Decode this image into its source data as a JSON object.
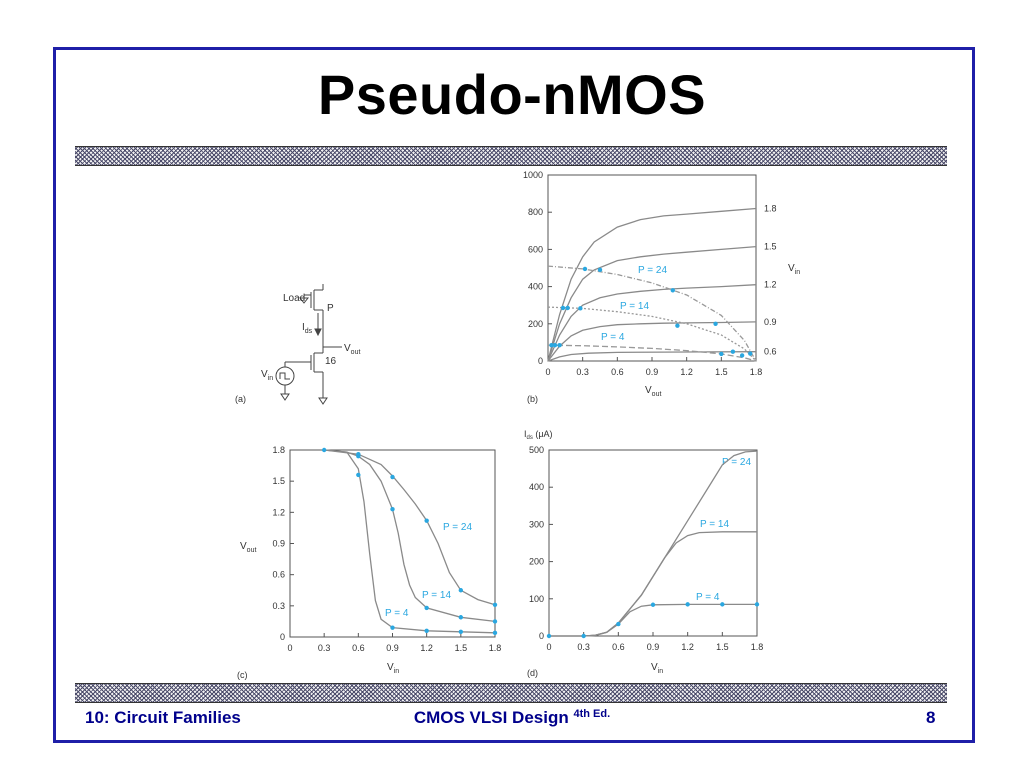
{
  "slide": {
    "title": "Pseudo-nMOS",
    "footer": {
      "left": "10: Circuit Families",
      "center": "CMOS VLSI Design",
      "center_sup": "4th Ed.",
      "page": "8"
    }
  },
  "figures": {
    "a": {
      "panel": "(a)",
      "load": "Load",
      "pmos": "P",
      "ids": "I",
      "ids_sub": "ds",
      "vout": "V",
      "vout_sub": "out",
      "nmos": "16",
      "vin": "V",
      "vin_sub": "in"
    },
    "b": {
      "panel": "(b)",
      "xlabel": "V",
      "xlabel_sub": "out",
      "vin_label": "V",
      "vin_sub": "in",
      "p_labels": [
        "P = 24",
        "P = 14",
        "P = 4"
      ]
    },
    "c": {
      "panel": "(c)",
      "ylabel": "V",
      "ylabel_sub": "out",
      "xlabel": "V",
      "xlabel_sub": "in",
      "p_labels": [
        "P = 24",
        "P = 14",
        "P = 4"
      ]
    },
    "d": {
      "panel": "(d)",
      "ylabel": "I",
      "ylabel_sub": "ds",
      "ylabel_unit": " (μA)",
      "xlabel": "V",
      "xlabel_sub": "in",
      "p_labels": [
        "P = 24",
        "P = 14",
        "P = 4"
      ]
    }
  },
  "chart_data": [
    {
      "type": "line",
      "panel": "(b)",
      "xlabel": "Vout",
      "xlim": [
        0,
        1.8
      ],
      "ylim": [
        0,
        1000
      ],
      "x_ticks": [
        0,
        0.3,
        0.6,
        0.9,
        1.2,
        1.5,
        1.8
      ],
      "y_ticks": [
        0,
        200,
        400,
        600,
        800,
        1000
      ],
      "x_tick_labels": [
        "0",
        "0.3",
        "0.6",
        "0.9",
        "1.2",
        "1.5",
        "1.8"
      ],
      "y_tick_labels": [
        "0",
        "200",
        "400",
        "600",
        "800",
        "1000"
      ],
      "vin_levels": [
        "1.8",
        "1.5",
        "1.2",
        "0.9",
        "0.6"
      ],
      "nmos_curves": [
        {
          "vin": "1.8",
          "x": [
            0,
            0.1,
            0.2,
            0.3,
            0.4,
            0.6,
            0.8,
            1.0,
            1.2,
            1.5,
            1.8
          ],
          "y": [
            0,
            250,
            440,
            560,
            640,
            720,
            760,
            780,
            790,
            805,
            820
          ]
        },
        {
          "vin": "1.5",
          "x": [
            0,
            0.1,
            0.2,
            0.3,
            0.4,
            0.6,
            0.8,
            1.0,
            1.2,
            1.5,
            1.8
          ],
          "y": [
            0,
            200,
            340,
            440,
            490,
            540,
            560,
            575,
            585,
            600,
            615
          ]
        },
        {
          "vin": "1.2",
          "x": [
            0,
            0.1,
            0.2,
            0.3,
            0.45,
            0.6,
            0.8,
            1.0,
            1.2,
            1.5,
            1.8
          ],
          "y": [
            0,
            140,
            240,
            300,
            340,
            360,
            375,
            385,
            392,
            400,
            410
          ]
        },
        {
          "vin": "0.9",
          "x": [
            0,
            0.1,
            0.2,
            0.3,
            0.45,
            0.6,
            0.8,
            1.0,
            1.2,
            1.5,
            1.8
          ],
          "y": [
            0,
            80,
            135,
            165,
            185,
            195,
            200,
            203,
            205,
            207,
            210
          ]
        },
        {
          "vin": "0.6",
          "x": [
            0,
            0.1,
            0.2,
            0.35,
            0.6,
            1.0,
            1.4,
            1.8
          ],
          "y": [
            0,
            22,
            35,
            42,
            46,
            48,
            49,
            50
          ]
        }
      ],
      "load_lines": [
        {
          "name": "P = 24",
          "x": [
            0,
            0.3,
            0.6,
            0.9,
            1.2,
            1.5,
            1.7,
            1.8
          ],
          "y": [
            510,
            495,
            465,
            420,
            355,
            245,
            110,
            0
          ]
        },
        {
          "name": "P = 14",
          "x": [
            0,
            0.3,
            0.6,
            0.9,
            1.2,
            1.5,
            1.7,
            1.8
          ],
          "y": [
            290,
            283,
            265,
            240,
            200,
            140,
            65,
            0
          ]
        },
        {
          "name": "P = 4",
          "x": [
            0,
            0.3,
            0.6,
            0.9,
            1.2,
            1.5,
            1.7,
            1.8
          ],
          "y": [
            85,
            82,
            76,
            68,
            56,
            38,
            17,
            0
          ]
        }
      ],
      "points": [
        {
          "x": 0.03,
          "y": 85
        },
        {
          "x": 0.06,
          "y": 85
        },
        {
          "x": 0.1,
          "y": 85
        },
        {
          "x": 0.13,
          "y": 285
        },
        {
          "x": 0.17,
          "y": 285
        },
        {
          "x": 0.28,
          "y": 283
        },
        {
          "x": 0.32,
          "y": 495
        },
        {
          "x": 0.45,
          "y": 490
        },
        {
          "x": 1.08,
          "y": 380
        },
        {
          "x": 1.12,
          "y": 190
        },
        {
          "x": 1.6,
          "y": 50
        },
        {
          "x": 1.45,
          "y": 200
        },
        {
          "x": 1.5,
          "y": 38
        },
        {
          "x": 1.68,
          "y": 30
        },
        {
          "x": 1.75,
          "y": 40
        }
      ]
    },
    {
      "type": "line",
      "panel": "(c)",
      "xlabel": "Vin",
      "ylabel": "Vout",
      "xlim": [
        0,
        1.8
      ],
      "ylim": [
        0,
        1.8
      ],
      "x_ticks": [
        0,
        0.3,
        0.6,
        0.9,
        1.2,
        1.5,
        1.8
      ],
      "y_ticks": [
        0,
        0.3,
        0.6,
        0.9,
        1.2,
        1.5,
        1.8
      ],
      "x_tick_labels": [
        "0",
        "0.3",
        "0.6",
        "0.9",
        "1.2",
        "1.5",
        "1.8"
      ],
      "y_tick_labels": [
        "0",
        "0.3",
        "0.6",
        "0.9",
        "1.2",
        "1.5",
        "1.8"
      ],
      "series": [
        {
          "name": "P = 4",
          "x": [
            0.3,
            0.5,
            0.6,
            0.65,
            0.7,
            0.75,
            0.8,
            0.9,
            1.2,
            1.5,
            1.8
          ],
          "y": [
            1.8,
            1.78,
            1.62,
            1.3,
            0.8,
            0.35,
            0.17,
            0.09,
            0.06,
            0.05,
            0.04
          ]
        },
        {
          "name": "P = 14",
          "x": [
            0.3,
            0.5,
            0.6,
            0.7,
            0.8,
            0.9,
            0.95,
            1.0,
            1.05,
            1.1,
            1.2,
            1.5,
            1.8
          ],
          "y": [
            1.8,
            1.78,
            1.74,
            1.66,
            1.5,
            1.23,
            1.0,
            0.7,
            0.5,
            0.38,
            0.28,
            0.19,
            0.15
          ]
        },
        {
          "name": "P = 24",
          "x": [
            0.3,
            0.6,
            0.8,
            0.9,
            1.0,
            1.1,
            1.2,
            1.3,
            1.4,
            1.5,
            1.65,
            1.8
          ],
          "y": [
            1.8,
            1.76,
            1.66,
            1.55,
            1.42,
            1.28,
            1.12,
            0.9,
            0.62,
            0.45,
            0.36,
            0.31
          ]
        }
      ],
      "points": [
        {
          "x": 0.3,
          "y": 1.8
        },
        {
          "x": 0.6,
          "y": 1.76
        },
        {
          "x": 0.6,
          "y": 1.74
        },
        {
          "x": 0.6,
          "y": 1.56
        },
        {
          "x": 0.9,
          "y": 1.54
        },
        {
          "x": 0.9,
          "y": 1.23
        },
        {
          "x": 0.9,
          "y": 0.09
        },
        {
          "x": 1.2,
          "y": 1.12
        },
        {
          "x": 1.2,
          "y": 0.28
        },
        {
          "x": 1.2,
          "y": 0.06
        },
        {
          "x": 1.5,
          "y": 0.45
        },
        {
          "x": 1.5,
          "y": 0.19
        },
        {
          "x": 1.5,
          "y": 0.05
        },
        {
          "x": 1.8,
          "y": 0.31
        },
        {
          "x": 1.8,
          "y": 0.15
        },
        {
          "x": 1.8,
          "y": 0.04
        }
      ]
    },
    {
      "type": "line",
      "panel": "(d)",
      "xlabel": "Vin",
      "ylabel": "Ids (μA)",
      "xlim": [
        0,
        1.8
      ],
      "ylim": [
        0,
        500
      ],
      "x_ticks": [
        0,
        0.3,
        0.6,
        0.9,
        1.2,
        1.5,
        1.8
      ],
      "y_ticks": [
        0,
        100,
        200,
        300,
        400,
        500
      ],
      "x_tick_labels": [
        "0",
        "0.3",
        "0.6",
        "0.9",
        "1.2",
        "1.5",
        "1.8"
      ],
      "y_tick_labels": [
        "0",
        "100",
        "200",
        "300",
        "400",
        "500"
      ],
      "series": [
        {
          "name": "P = 24",
          "x": [
            0,
            0.3,
            0.4,
            0.5,
            0.6,
            0.8,
            1.0,
            1.2,
            1.4,
            1.5,
            1.6,
            1.7,
            1.8
          ],
          "y": [
            0,
            0,
            2,
            10,
            35,
            110,
            210,
            310,
            410,
            460,
            485,
            495,
            497
          ]
        },
        {
          "name": "P = 14",
          "x": [
            0,
            0.3,
            0.4,
            0.5,
            0.6,
            0.8,
            1.0,
            1.1,
            1.2,
            1.3,
            1.5,
            1.8
          ],
          "y": [
            0,
            0,
            2,
            10,
            35,
            110,
            210,
            250,
            270,
            278,
            280,
            280
          ]
        },
        {
          "name": "P = 4",
          "x": [
            0,
            0.3,
            0.4,
            0.5,
            0.6,
            0.7,
            0.8,
            0.9,
            1.2,
            1.5,
            1.8
          ],
          "y": [
            0,
            0,
            2,
            10,
            32,
            65,
            80,
            84,
            85,
            85,
            85
          ]
        }
      ],
      "points": [
        {
          "x": 0,
          "y": 0
        },
        {
          "x": 0.3,
          "y": 0
        },
        {
          "x": 0.6,
          "y": 32
        },
        {
          "x": 0.9,
          "y": 84
        },
        {
          "x": 1.2,
          "y": 85
        },
        {
          "x": 1.5,
          "y": 85
        },
        {
          "x": 1.8,
          "y": 85
        }
      ]
    }
  ]
}
